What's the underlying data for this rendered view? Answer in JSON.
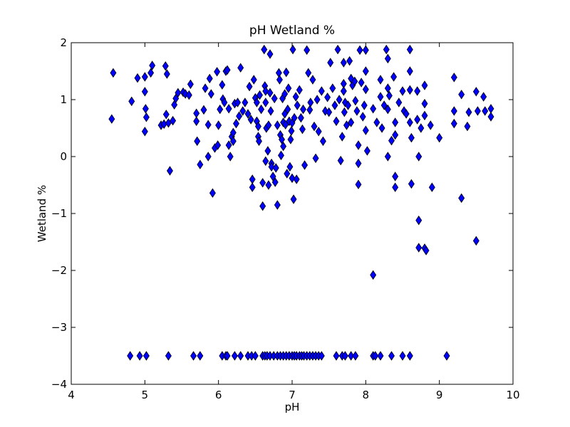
{
  "chart_data": {
    "type": "scatter",
    "title": "pH Wetland %",
    "xlabel": "pH",
    "ylabel": "Wetland %",
    "xlim": [
      4,
      10
    ],
    "ylim": [
      -4,
      2
    ],
    "xticks": [
      4,
      5,
      6,
      7,
      8,
      9,
      10
    ],
    "yticks": [
      -4,
      -3,
      -2,
      -1,
      0,
      1,
      2
    ],
    "xtick_labels": [
      "4",
      "5",
      "6",
      "7",
      "8",
      "9",
      "10"
    ],
    "ytick_labels": [
      "−4",
      "−3",
      "−2",
      "−1",
      "0",
      "1",
      "2"
    ],
    "grid": false,
    "marker": "diamond",
    "marker_color": "#0000ff",
    "marker_edge": "#000000",
    "series": [
      {
        "points": [
          [
            4.55,
            0.66
          ],
          [
            4.57,
            1.47
          ],
          [
            4.82,
            0.97
          ],
          [
            4.9,
            1.38
          ],
          [
            5.0,
            1.4
          ],
          [
            5.0,
            1.14
          ],
          [
            5.01,
            0.84
          ],
          [
            5.02,
            0.69
          ],
          [
            5.0,
            0.44
          ],
          [
            5.08,
            1.47
          ],
          [
            5.1,
            1.6
          ],
          [
            5.22,
            0.55
          ],
          [
            5.26,
            0.57
          ],
          [
            5.28,
            1.59
          ],
          [
            5.29,
            0.74
          ],
          [
            5.3,
            1.45
          ],
          [
            5.32,
            0.59
          ],
          [
            5.34,
            -0.25
          ],
          [
            5.38,
            0.63
          ],
          [
            5.4,
            0.91
          ],
          [
            5.42,
            1.02
          ],
          [
            5.45,
            1.12
          ],
          [
            5.52,
            1.13
          ],
          [
            5.55,
            1.1
          ],
          [
            5.6,
            1.08
          ],
          [
            5.62,
            1.27
          ],
          [
            5.7,
            0.76
          ],
          [
            5.7,
            0.62
          ],
          [
            5.71,
            0.27
          ],
          [
            5.75,
            -0.14
          ],
          [
            5.8,
            0.82
          ],
          [
            5.82,
            1.2
          ],
          [
            5.86,
            0.56
          ],
          [
            5.86,
            0.0
          ],
          [
            5.88,
            1.37
          ],
          [
            5.9,
            1.1
          ],
          [
            5.92,
            -0.64
          ],
          [
            5.95,
            0.15
          ],
          [
            5.98,
            1.49
          ],
          [
            5.99,
            0.2
          ],
          [
            6.0,
            0.55
          ],
          [
            6.02,
            0.83
          ],
          [
            6.05,
            1.26
          ],
          [
            6.06,
            1.01
          ],
          [
            6.08,
            0.95
          ],
          [
            6.1,
            1.5
          ],
          [
            6.12,
            1.52
          ],
          [
            6.14,
            0.84
          ],
          [
            6.14,
            0.2
          ],
          [
            6.16,
            0.0
          ],
          [
            6.18,
            0.35
          ],
          [
            6.2,
            0.42
          ],
          [
            6.2,
            0.27
          ],
          [
            6.22,
            0.93
          ],
          [
            6.24,
            0.58
          ],
          [
            6.26,
            0.95
          ],
          [
            6.28,
            0.71
          ],
          [
            6.3,
            1.56
          ],
          [
            6.33,
            0.8
          ],
          [
            6.36,
            0.95
          ],
          [
            6.4,
            0.75
          ],
          [
            6.42,
            1.23
          ],
          [
            6.44,
            0.65
          ],
          [
            6.46,
            -0.4
          ],
          [
            6.46,
            -0.54
          ],
          [
            6.48,
            1.35
          ],
          [
            6.5,
            1.03
          ],
          [
            6.52,
            0.95
          ],
          [
            6.52,
            0.62
          ],
          [
            6.54,
            0.53
          ],
          [
            6.54,
            0.35
          ],
          [
            6.55,
            0.27
          ],
          [
            6.56,
            1.08
          ],
          [
            6.58,
            0.83
          ],
          [
            6.6,
            -0.46
          ],
          [
            6.6,
            -0.87
          ],
          [
            6.62,
            1.88
          ],
          [
            6.63,
            1.24
          ],
          [
            6.64,
            1.15
          ],
          [
            6.64,
            0.95
          ],
          [
            6.64,
            -0.08
          ],
          [
            6.65,
            0.5
          ],
          [
            6.67,
            0.1
          ],
          [
            6.68,
            0.55
          ],
          [
            6.68,
            -0.5
          ],
          [
            6.7,
            1.8
          ],
          [
            6.7,
            1.12
          ],
          [
            6.71,
            0.8
          ],
          [
            6.72,
            -0.12
          ],
          [
            6.72,
            -0.18
          ],
          [
            6.74,
            -0.35
          ],
          [
            6.76,
            1.02
          ],
          [
            6.77,
            -0.45
          ],
          [
            6.78,
            -0.2
          ],
          [
            6.8,
            -0.85
          ],
          [
            6.8,
            0.55
          ],
          [
            6.82,
            1.47
          ],
          [
            6.83,
            1.35
          ],
          [
            6.84,
            0.38
          ],
          [
            6.85,
            0.02
          ],
          [
            6.86,
            0.3
          ],
          [
            6.87,
            1.02
          ],
          [
            6.88,
            0.6
          ],
          [
            6.88,
            0.18
          ],
          [
            6.9,
            1.1
          ],
          [
            6.9,
            0.75
          ],
          [
            6.91,
            0.56
          ],
          [
            6.92,
            1.48
          ],
          [
            6.93,
            -0.3
          ],
          [
            6.94,
            0.83
          ],
          [
            6.95,
            1.2
          ],
          [
            6.96,
            0.62
          ],
          [
            6.97,
            -0.18
          ],
          [
            6.98,
            0.3
          ],
          [
            6.99,
            0.45
          ],
          [
            7.0,
            0.59
          ],
          [
            7.0,
            -0.38
          ],
          [
            7.01,
            1.88
          ],
          [
            7.02,
            -0.75
          ],
          [
            7.03,
            0.68
          ],
          [
            7.05,
            1.05
          ],
          [
            7.06,
            -0.4
          ],
          [
            7.07,
            0.9
          ],
          [
            7.1,
            1.17
          ],
          [
            7.12,
            0.68
          ],
          [
            7.14,
            0.48
          ],
          [
            7.15,
            0.83
          ],
          [
            7.17,
            -0.15
          ],
          [
            7.2,
            1.87
          ],
          [
            7.22,
            1.47
          ],
          [
            7.24,
            0.82
          ],
          [
            7.25,
            0.95
          ],
          [
            7.28,
            1.35
          ],
          [
            7.3,
            0.53
          ],
          [
            7.32,
            -0.03
          ],
          [
            7.34,
            1.0
          ],
          [
            7.36,
            0.44
          ],
          [
            7.4,
            1.15
          ],
          [
            7.42,
            0.27
          ],
          [
            7.45,
            0.8
          ],
          [
            7.48,
            1.04
          ],
          [
            7.5,
            0.78
          ],
          [
            7.52,
            1.65
          ],
          [
            7.55,
            1.2
          ],
          [
            7.58,
            0.9
          ],
          [
            7.6,
            0.62
          ],
          [
            7.62,
            1.88
          ],
          [
            7.64,
            1.0
          ],
          [
            7.66,
            -0.07
          ],
          [
            7.68,
            0.35
          ],
          [
            7.7,
            1.65
          ],
          [
            7.7,
            1.28
          ],
          [
            7.7,
            1.15
          ],
          [
            7.71,
            0.78
          ],
          [
            7.72,
            0.95
          ],
          [
            7.74,
            0.55
          ],
          [
            7.76,
            0.9
          ],
          [
            7.78,
            1.68
          ],
          [
            7.8,
            1.37
          ],
          [
            7.8,
            0.6
          ],
          [
            7.82,
            1.25
          ],
          [
            7.85,
            1.32
          ],
          [
            7.86,
            0.98
          ],
          [
            7.88,
            0.8
          ],
          [
            7.9,
            0.2
          ],
          [
            7.9,
            -0.12
          ],
          [
            7.9,
            -0.49
          ],
          [
            7.92,
            1.87
          ],
          [
            7.94,
            1.3
          ],
          [
            7.96,
            0.7
          ],
          [
            7.98,
            0.9
          ],
          [
            8.0,
            1.87
          ],
          [
            8.0,
            1.5
          ],
          [
            8.0,
            1.18
          ],
          [
            8.0,
            0.46
          ],
          [
            8.02,
            0.1
          ],
          [
            8.1,
            0.84
          ],
          [
            8.1,
            -2.08
          ],
          [
            8.15,
            0.6
          ],
          [
            8.2,
            1.35
          ],
          [
            8.2,
            1.05
          ],
          [
            8.22,
            0.5
          ],
          [
            8.25,
            0.9
          ],
          [
            8.28,
            1.88
          ],
          [
            8.3,
            1.72
          ],
          [
            8.3,
            1.2
          ],
          [
            8.3,
            0.83
          ],
          [
            8.3,
            0.0
          ],
          [
            8.32,
            1.07
          ],
          [
            8.35,
            0.28
          ],
          [
            8.38,
            1.4
          ],
          [
            8.4,
            0.6
          ],
          [
            8.4,
            0.38
          ],
          [
            8.4,
            -0.35
          ],
          [
            8.4,
            -0.54
          ],
          [
            8.45,
            0.95
          ],
          [
            8.5,
            1.15
          ],
          [
            8.52,
            0.8
          ],
          [
            8.55,
            0.75
          ],
          [
            8.6,
            1.88
          ],
          [
            8.6,
            1.5
          ],
          [
            8.6,
            1.17
          ],
          [
            8.6,
            0.6
          ],
          [
            8.62,
            0.33
          ],
          [
            8.62,
            -0.48
          ],
          [
            8.7,
            1.15
          ],
          [
            8.7,
            0.65
          ],
          [
            8.72,
            0.0
          ],
          [
            8.72,
            -1.12
          ],
          [
            8.72,
            -1.6
          ],
          [
            8.75,
            0.5
          ],
          [
            8.8,
            1.25
          ],
          [
            8.8,
            0.93
          ],
          [
            8.8,
            0.72
          ],
          [
            8.8,
            -1.61
          ],
          [
            8.82,
            -1.65
          ],
          [
            8.88,
            0.55
          ],
          [
            8.9,
            -0.54
          ],
          [
            9.0,
            0.33
          ],
          [
            9.2,
            1.39
          ],
          [
            9.2,
            0.8
          ],
          [
            9.2,
            0.58
          ],
          [
            9.3,
            1.09
          ],
          [
            9.3,
            -0.73
          ],
          [
            9.38,
            0.53
          ],
          [
            9.4,
            0.78
          ],
          [
            9.5,
            1.14
          ],
          [
            9.5,
            -1.48
          ],
          [
            9.52,
            0.8
          ],
          [
            9.6,
            1.05
          ],
          [
            9.62,
            0.8
          ],
          [
            9.7,
            0.84
          ],
          [
            9.7,
            0.7
          ],
          [
            4.8,
            -3.5
          ],
          [
            4.93,
            -3.5
          ],
          [
            5.02,
            -3.5
          ],
          [
            5.32,
            -3.5
          ],
          [
            5.66,
            -3.5
          ],
          [
            5.75,
            -3.5
          ],
          [
            6.05,
            -3.5
          ],
          [
            6.1,
            -3.5
          ],
          [
            6.12,
            -3.5
          ],
          [
            6.22,
            -3.5
          ],
          [
            6.3,
            -3.5
          ],
          [
            6.4,
            -3.5
          ],
          [
            6.45,
            -3.5
          ],
          [
            6.5,
            -3.5
          ],
          [
            6.6,
            -3.5
          ],
          [
            6.63,
            -3.5
          ],
          [
            6.66,
            -3.5
          ],
          [
            6.7,
            -3.5
          ],
          [
            6.75,
            -3.5
          ],
          [
            6.8,
            -3.5
          ],
          [
            6.84,
            -3.5
          ],
          [
            6.88,
            -3.5
          ],
          [
            6.92,
            -3.5
          ],
          [
            6.96,
            -3.5
          ],
          [
            7.0,
            -3.5
          ],
          [
            7.03,
            -3.5
          ],
          [
            7.06,
            -3.5
          ],
          [
            7.1,
            -3.5
          ],
          [
            7.13,
            -3.5
          ],
          [
            7.16,
            -3.5
          ],
          [
            7.2,
            -3.5
          ],
          [
            7.24,
            -3.5
          ],
          [
            7.28,
            -3.5
          ],
          [
            7.32,
            -3.5
          ],
          [
            7.36,
            -3.5
          ],
          [
            7.4,
            -3.5
          ],
          [
            7.6,
            -3.5
          ],
          [
            7.68,
            -3.5
          ],
          [
            7.72,
            -3.5
          ],
          [
            7.8,
            -3.5
          ],
          [
            7.86,
            -3.5
          ],
          [
            8.1,
            -3.5
          ],
          [
            8.13,
            -3.5
          ],
          [
            8.2,
            -3.5
          ],
          [
            8.35,
            -3.5
          ],
          [
            8.5,
            -3.5
          ],
          [
            8.6,
            -3.5
          ],
          [
            9.1,
            -3.5
          ]
        ]
      }
    ]
  }
}
